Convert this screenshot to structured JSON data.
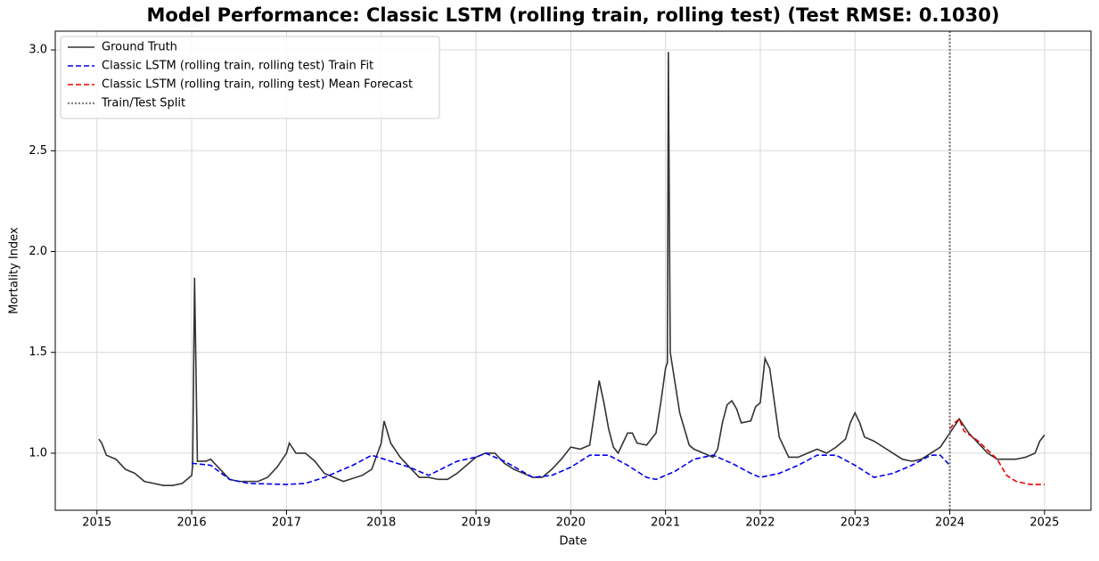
{
  "chart_data": {
    "type": "line",
    "title": "Model Performance: Classic LSTM (rolling train, rolling test) (Test RMSE: 0.1030)",
    "xlabel": "Date",
    "ylabel": "Mortality Index",
    "xlim": [
      2014.56,
      2025.49
    ],
    "xticks": [
      2015,
      2016,
      2017,
      2018,
      2019,
      2020,
      2021,
      2022,
      2023,
      2024,
      2025
    ],
    "ylim": [
      0.717,
      3.093
    ],
    "yticks": [
      {
        "value": 1,
        "label": "1.0"
      },
      1.5,
      {
        "value": 2,
        "label": "2.0"
      },
      2.5,
      {
        "value": 3,
        "label": "3.0"
      }
    ],
    "grid": true,
    "legend": "upper left",
    "series": [
      {
        "name": "Ground Truth",
        "color": "#333333",
        "style": "solid",
        "x": [
          2015.02,
          2015.05,
          2015.1,
          2015.2,
          2015.3,
          2015.4,
          2015.5,
          2015.6,
          2015.7,
          2015.8,
          2015.9,
          2016.0,
          2016.01,
          2016.03,
          2016.06,
          2016.15,
          2016.2,
          2016.3,
          2016.4,
          2016.5,
          2016.7,
          2016.8,
          2016.9,
          2017.0,
          2017.03,
          2017.1,
          2017.2,
          2017.3,
          2017.4,
          2017.5,
          2017.6,
          2017.8,
          2017.9,
          2018.0,
          2018.03,
          2018.1,
          2018.2,
          2018.3,
          2018.4,
          2018.5,
          2018.6,
          2018.7,
          2018.8,
          2018.9,
          2019.0,
          2019.1,
          2019.2,
          2019.3,
          2019.4,
          2019.5,
          2019.6,
          2019.7,
          2019.8,
          2019.9,
          2020.0,
          2020.1,
          2020.2,
          2020.25,
          2020.3,
          2020.35,
          2020.4,
          2020.45,
          2020.5,
          2020.55,
          2020.6,
          2020.65,
          2020.7,
          2020.8,
          2020.9,
          2020.95,
          2021.0,
          2021.02,
          2021.03,
          2021.05,
          2021.1,
          2021.15,
          2021.2,
          2021.25,
          2021.3,
          2021.4,
          2021.5,
          2021.55,
          2021.6,
          2021.65,
          2021.7,
          2021.75,
          2021.8,
          2021.9,
          2021.95,
          2022.0,
          2022.05,
          2022.1,
          2022.15,
          2022.2,
          2022.3,
          2022.4,
          2022.5,
          2022.6,
          2022.7,
          2022.8,
          2022.9,
          2022.95,
          2023.0,
          2023.05,
          2023.1,
          2023.2,
          2023.3,
          2023.4,
          2023.5,
          2023.6,
          2023.7,
          2023.8,
          2023.9,
          2024.0,
          2024.1,
          2024.2,
          2024.3,
          2024.4,
          2024.5,
          2024.6,
          2024.7,
          2024.8,
          2024.9,
          2024.95,
          2025.0
        ],
        "values": [
          1.07,
          1.05,
          0.99,
          0.97,
          0.92,
          0.9,
          0.86,
          0.85,
          0.84,
          0.84,
          0.85,
          0.89,
          0.94,
          1.87,
          0.96,
          0.96,
          0.97,
          0.92,
          0.87,
          0.86,
          0.86,
          0.88,
          0.93,
          1.0,
          1.05,
          1.0,
          1.0,
          0.96,
          0.9,
          0.88,
          0.86,
          0.89,
          0.92,
          1.05,
          1.16,
          1.05,
          0.98,
          0.93,
          0.88,
          0.88,
          0.87,
          0.87,
          0.9,
          0.94,
          0.98,
          1.0,
          1.0,
          0.95,
          0.92,
          0.9,
          0.88,
          0.88,
          0.92,
          0.97,
          1.03,
          1.02,
          1.04,
          1.2,
          1.36,
          1.25,
          1.12,
          1.03,
          1.0,
          1.05,
          1.1,
          1.1,
          1.05,
          1.04,
          1.1,
          1.25,
          1.42,
          1.45,
          2.99,
          1.5,
          1.35,
          1.2,
          1.12,
          1.04,
          1.02,
          1.0,
          0.98,
          1.02,
          1.15,
          1.24,
          1.26,
          1.22,
          1.15,
          1.16,
          1.23,
          1.25,
          1.47,
          1.42,
          1.25,
          1.08,
          0.98,
          0.98,
          1.0,
          1.02,
          1.0,
          1.03,
          1.07,
          1.15,
          1.2,
          1.15,
          1.08,
          1.06,
          1.03,
          1.0,
          0.97,
          0.96,
          0.97,
          1.0,
          1.03,
          1.1,
          1.17,
          1.1,
          1.05,
          1.0,
          0.97,
          0.97,
          0.97,
          0.98,
          1.0,
          1.06,
          1.09
        ]
      },
      {
        "name": "Classic LSTM (rolling train, rolling test) Train Fit",
        "color": "#0000ee",
        "style": "dashed",
        "x": [
          2016.0,
          2016.2,
          2016.4,
          2016.6,
          2017.0,
          2017.2,
          2017.4,
          2017.7,
          2017.9,
          2018.1,
          2018.3,
          2018.5,
          2018.8,
          2019.0,
          2019.1,
          2019.3,
          2019.6,
          2019.8,
          2020.0,
          2020.2,
          2020.4,
          2020.6,
          2020.8,
          2020.9,
          2021.1,
          2021.3,
          2021.5,
          2021.7,
          2021.9,
          2022.0,
          2022.2,
          2022.4,
          2022.6,
          2022.8,
          2023.0,
          2023.2,
          2023.4,
          2023.6,
          2023.8,
          2023.9,
          2024.0
        ],
        "values": [
          0.95,
          0.94,
          0.87,
          0.85,
          0.845,
          0.85,
          0.88,
          0.94,
          0.99,
          0.96,
          0.93,
          0.89,
          0.96,
          0.98,
          1.0,
          0.96,
          0.88,
          0.89,
          0.93,
          0.99,
          0.99,
          0.94,
          0.88,
          0.87,
          0.91,
          0.97,
          0.99,
          0.95,
          0.9,
          0.88,
          0.9,
          0.94,
          0.99,
          0.99,
          0.94,
          0.88,
          0.9,
          0.94,
          0.99,
          0.99,
          0.94
        ]
      },
      {
        "name": "Classic LSTM (rolling train, rolling test) Mean Forecast",
        "color": "#ee0000",
        "style": "dashed",
        "x": [
          2024.0,
          2024.05,
          2024.1,
          2024.15,
          2024.3,
          2024.5,
          2024.6,
          2024.7,
          2024.85,
          2025.0
        ],
        "values": [
          1.12,
          1.15,
          1.17,
          1.11,
          1.06,
          0.97,
          0.89,
          0.86,
          0.845,
          0.845
        ]
      }
    ],
    "vlines": [
      {
        "name": "Train/Test Split",
        "x": 2024.0,
        "color": "#808080",
        "style": "dotted"
      }
    ]
  }
}
